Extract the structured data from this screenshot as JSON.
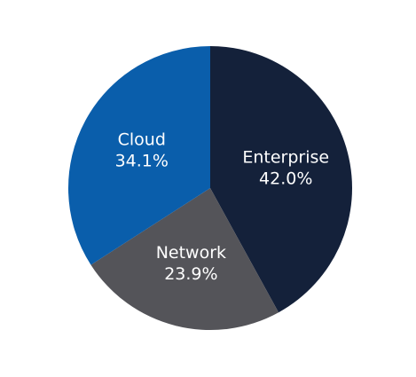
{
  "chart_data": {
    "type": "pie",
    "categories": [
      "Enterprise",
      "Network",
      "Cloud"
    ],
    "values": [
      42.0,
      23.9,
      34.1
    ],
    "value_labels": [
      "42.0%",
      "23.9%",
      "34.1%"
    ],
    "colors": [
      "#14213a",
      "#545459",
      "#0a5eab"
    ]
  }
}
